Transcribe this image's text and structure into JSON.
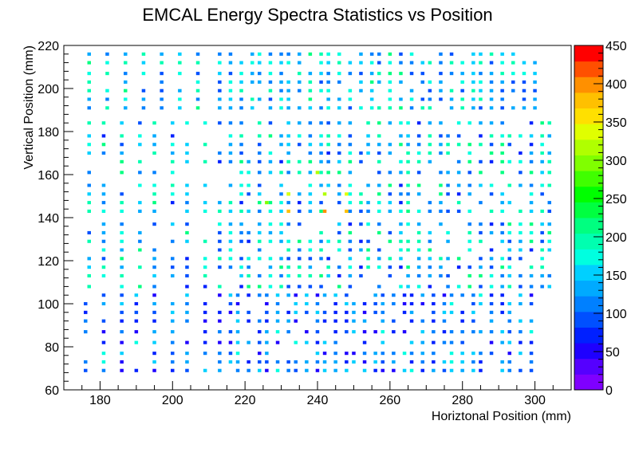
{
  "chart_data": {
    "type": "heatmap",
    "title": "EMCAL Energy Spectra Statistics vs Position",
    "xlabel": "Horiztonal Position (mm)",
    "ylabel": "Vertical Position (mm)",
    "xlim": [
      170,
      310
    ],
    "ylim": [
      60,
      220
    ],
    "zlim": [
      0,
      450
    ],
    "x_ticks": [
      "180",
      "200",
      "220",
      "240",
      "260",
      "280",
      "300"
    ],
    "y_ticks": [
      "60",
      "80",
      "100",
      "120",
      "140",
      "160",
      "180",
      "200",
      "220"
    ],
    "z_ticks": [
      "0",
      "50",
      "100",
      "150",
      "200",
      "250",
      "300",
      "350",
      "400",
      "450"
    ],
    "bin_size": {
      "x": 1,
      "y": 1.5
    },
    "palette": [
      "#7f00ff",
      "#5500ff",
      "#1e00ff",
      "#0020ff",
      "#0050ff",
      "#0080ff",
      "#00aaff",
      "#00d0ff",
      "#00ffe0",
      "#00ffb0",
      "#00ff80",
      "#00ff40",
      "#00ff00",
      "#40ff00",
      "#80ff00",
      "#b0ff00",
      "#e0ff00",
      "#ffe000",
      "#ffc000",
      "#ff9000",
      "#ff5000",
      "#ff0000"
    ],
    "columns_top": [
      177,
      182,
      187,
      192,
      197,
      202,
      207,
      213,
      216,
      219,
      222,
      224,
      227,
      230,
      232,
      235,
      238,
      241,
      243,
      246,
      249,
      252,
      255,
      257,
      260,
      263,
      266,
      269,
      271,
      274,
      277,
      280,
      283,
      285,
      288,
      291,
      294,
      297,
      300
    ],
    "columns_middle": [
      177,
      181,
      186,
      191,
      195,
      200,
      204,
      209,
      213,
      216,
      219,
      221,
      224,
      227,
      230,
      232,
      235,
      238,
      241,
      243,
      246,
      249,
      252,
      254,
      257,
      260,
      263,
      265,
      268,
      271,
      274,
      276,
      279,
      282,
      285,
      288,
      291,
      293,
      296,
      299,
      302,
      304
    ],
    "columns_bottom": [
      176,
      181,
      186,
      190,
      195,
      200,
      204,
      209,
      213,
      216,
      218,
      221,
      224,
      226,
      229,
      232,
      234,
      237,
      240,
      242,
      245,
      248,
      250,
      253,
      256,
      258,
      261,
      264,
      266,
      269,
      272,
      275,
      277,
      280,
      283,
      285,
      288,
      291,
      293,
      296,
      299
    ],
    "rows_top": [
      216,
      212,
      207,
      203,
      199,
      195,
      191
    ],
    "rows_middle": [
      184,
      178,
      174,
      170,
      166,
      161,
      155,
      151,
      147,
      143,
      137,
      133,
      129,
      125,
      121,
      117,
      113,
      108
    ],
    "rows_bottom": [
      104,
      100,
      96,
      92,
      87,
      82,
      77,
      73,
      69
    ],
    "hot_spots": [
      {
        "x": 232,
        "y": 143,
        "z": 380
      },
      {
        "x": 242,
        "y": 143,
        "z": 400
      },
      {
        "x": 248,
        "y": 143,
        "z": 370
      },
      {
        "x": 232,
        "y": 151,
        "z": 330
      },
      {
        "x": 248,
        "y": 151,
        "z": 340
      },
      {
        "x": 242,
        "y": 151,
        "z": 310
      },
      {
        "x": 240,
        "y": 161,
        "z": 310
      },
      {
        "x": 226,
        "y": 147,
        "z": 300
      }
    ],
    "grid": false,
    "legend": "right colorbar"
  }
}
